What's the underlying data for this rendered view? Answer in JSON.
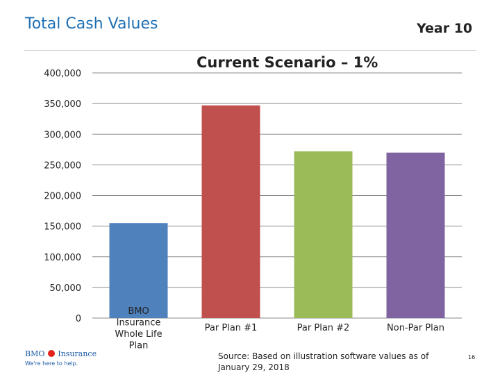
{
  "slide": {
    "title": "Total Cash Values",
    "year_label": "Year 10",
    "source_note": "Source: Based on illustration software values as of January 29, 2018",
    "page_number": "16",
    "logo": {
      "brand": "BMO",
      "product": "Insurance",
      "tagline": "We're here to help.",
      "brand_color": "#1b5aa6",
      "accent_color": "#e2231a"
    }
  },
  "chart_data": {
    "type": "bar",
    "title": "Current Scenario – 1%",
    "xlabel": "",
    "ylabel": "",
    "categories": [
      "BMO Insurance Whole Life Plan",
      "Par Plan #1",
      "Par Plan #2",
      "Non-Par Plan"
    ],
    "category_lines": [
      [
        "BMO",
        "Insurance",
        "Whole Life",
        "Plan"
      ],
      [
        "Par Plan #1"
      ],
      [
        "Par Plan #2"
      ],
      [
        "Non-Par Plan"
      ]
    ],
    "values": [
      155000,
      347000,
      272000,
      270000
    ],
    "colors": [
      "#4f81bd",
      "#c0504d",
      "#9bbb59",
      "#8064a2"
    ],
    "ylim": [
      0,
      400000
    ],
    "yticks": [
      0,
      50000,
      100000,
      150000,
      200000,
      250000,
      300000,
      350000,
      400000
    ],
    "ytick_labels": [
      "0",
      "50,000",
      "100,000",
      "150,000",
      "200,000",
      "250,000",
      "300,000",
      "350,000",
      "400,000"
    ],
    "grid": true,
    "legend": "none"
  }
}
